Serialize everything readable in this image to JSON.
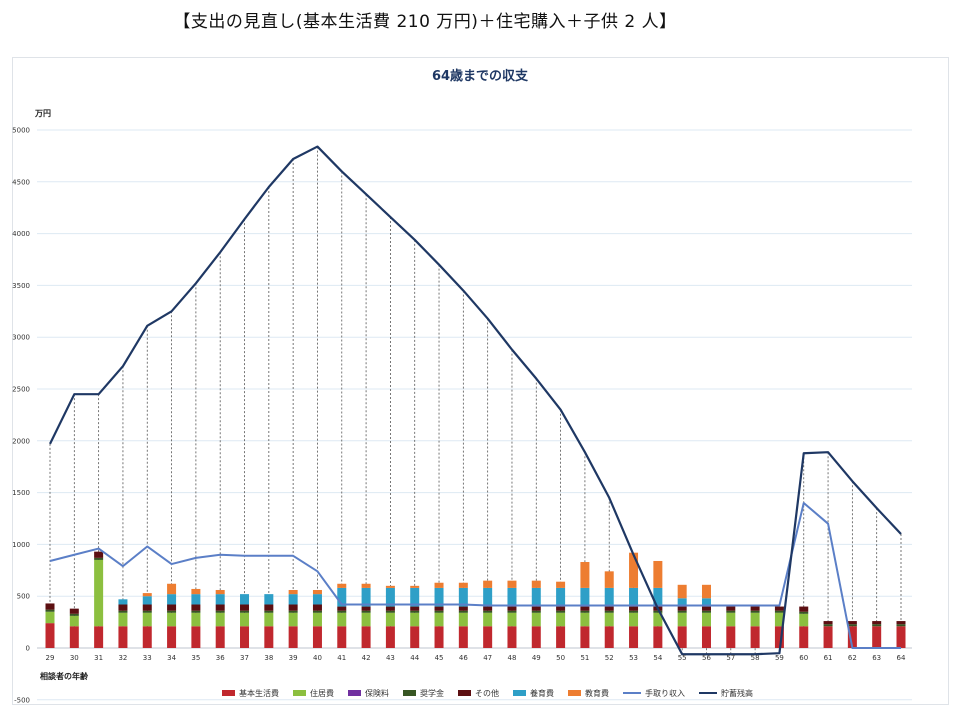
{
  "heading": "【支出の見直し(基本生活費 210 万円)＋住宅購入＋子供 2 人】",
  "chart_data": {
    "type": "bar",
    "title": "64歳までの収支",
    "ylabel": "万円",
    "xlabel": "相談者の年齢",
    "ylim": [
      -500,
      5000
    ],
    "yticks": [
      -500,
      0,
      500,
      1000,
      1500,
      2000,
      2500,
      3000,
      3500,
      4000,
      4500,
      5000
    ],
    "categories": [
      "29",
      "30",
      "31",
      "32",
      "33",
      "34",
      "35",
      "36",
      "37",
      "38",
      "39",
      "40",
      "41",
      "42",
      "43",
      "44",
      "45",
      "46",
      "47",
      "48",
      "49",
      "50",
      "51",
      "52",
      "53",
      "54",
      "55",
      "56",
      "57",
      "58",
      "59",
      "60",
      "61",
      "62",
      "63",
      "64"
    ],
    "stacked_series": [
      {
        "name": "基本生活費",
        "color": "#c0282e",
        "values": [
          240,
          210,
          210,
          210,
          210,
          210,
          210,
          210,
          210,
          210,
          210,
          210,
          210,
          210,
          210,
          210,
          210,
          210,
          210,
          210,
          210,
          210,
          210,
          210,
          210,
          210,
          210,
          210,
          210,
          210,
          210,
          210,
          210,
          210,
          210,
          210
        ]
      },
      {
        "name": "住居費",
        "color": "#8cbf3f",
        "values": [
          110,
          100,
          640,
          130,
          130,
          130,
          130,
          130,
          130,
          130,
          130,
          130,
          130,
          130,
          130,
          130,
          130,
          130,
          130,
          130,
          130,
          130,
          130,
          130,
          130,
          130,
          130,
          130,
          130,
          130,
          130,
          120,
          0,
          0,
          0,
          0
        ]
      },
      {
        "name": "保険料",
        "color": "#7030a0",
        "values": [
          0,
          0,
          0,
          0,
          0,
          0,
          0,
          0,
          0,
          0,
          0,
          0,
          0,
          0,
          0,
          0,
          0,
          0,
          0,
          0,
          0,
          0,
          0,
          0,
          0,
          0,
          0,
          0,
          0,
          0,
          0,
          0,
          0,
          0,
          0,
          0
        ]
      },
      {
        "name": "奨学金",
        "color": "#375623",
        "values": [
          20,
          20,
          20,
          20,
          20,
          20,
          20,
          20,
          20,
          20,
          20,
          20,
          20,
          20,
          20,
          20,
          20,
          20,
          20,
          20,
          20,
          20,
          20,
          20,
          20,
          20,
          20,
          20,
          20,
          20,
          20,
          20,
          20,
          20,
          20,
          20
        ]
      },
      {
        "name": "その他",
        "color": "#5c0f12",
        "values": [
          60,
          50,
          60,
          60,
          60,
          60,
          60,
          60,
          60,
          60,
          60,
          60,
          40,
          40,
          40,
          40,
          40,
          40,
          40,
          40,
          40,
          40,
          40,
          40,
          40,
          40,
          40,
          40,
          40,
          40,
          40,
          50,
          30,
          30,
          30,
          30
        ]
      },
      {
        "name": "養育費",
        "color": "#2e9fc7",
        "values": [
          0,
          0,
          0,
          50,
          80,
          100,
          100,
          100,
          100,
          100,
          100,
          100,
          180,
          180,
          180,
          180,
          180,
          180,
          180,
          180,
          180,
          180,
          180,
          180,
          180,
          180,
          80,
          80,
          0,
          0,
          0,
          0,
          0,
          0,
          0,
          0
        ]
      },
      {
        "name": "教育費",
        "color": "#ed7d31",
        "values": [
          0,
          0,
          0,
          0,
          30,
          100,
          50,
          40,
          0,
          0,
          40,
          40,
          40,
          40,
          20,
          20,
          50,
          50,
          70,
          70,
          70,
          60,
          250,
          160,
          340,
          260,
          130,
          130,
          0,
          0,
          0,
          0,
          0,
          0,
          0,
          0
        ]
      }
    ],
    "line_series": [
      {
        "name": "手取り収入",
        "color": "#5b7fc7",
        "values": [
          840,
          900,
          960,
          790,
          980,
          810,
          870,
          900,
          890,
          890,
          890,
          740,
          420,
          420,
          420,
          420,
          420,
          420,
          410,
          410,
          410,
          410,
          410,
          410,
          410,
          410,
          410,
          410,
          410,
          410,
          410,
          1400,
          1200,
          0,
          0,
          0
        ]
      },
      {
        "name": "貯蓄残高",
        "color": "#1f3864",
        "values": [
          1970,
          2450,
          2450,
          2720,
          3110,
          3250,
          3520,
          3820,
          4140,
          4450,
          4720,
          4840,
          4600,
          4380,
          4160,
          3940,
          3700,
          3450,
          3180,
          2880,
          2600,
          2300,
          1890,
          1450,
          900,
          380,
          -60,
          -60,
          -60,
          -60,
          -50,
          1880,
          1890,
          1610,
          1350,
          1100
        ]
      }
    ],
    "grid": true,
    "legend_position": "bottom"
  }
}
